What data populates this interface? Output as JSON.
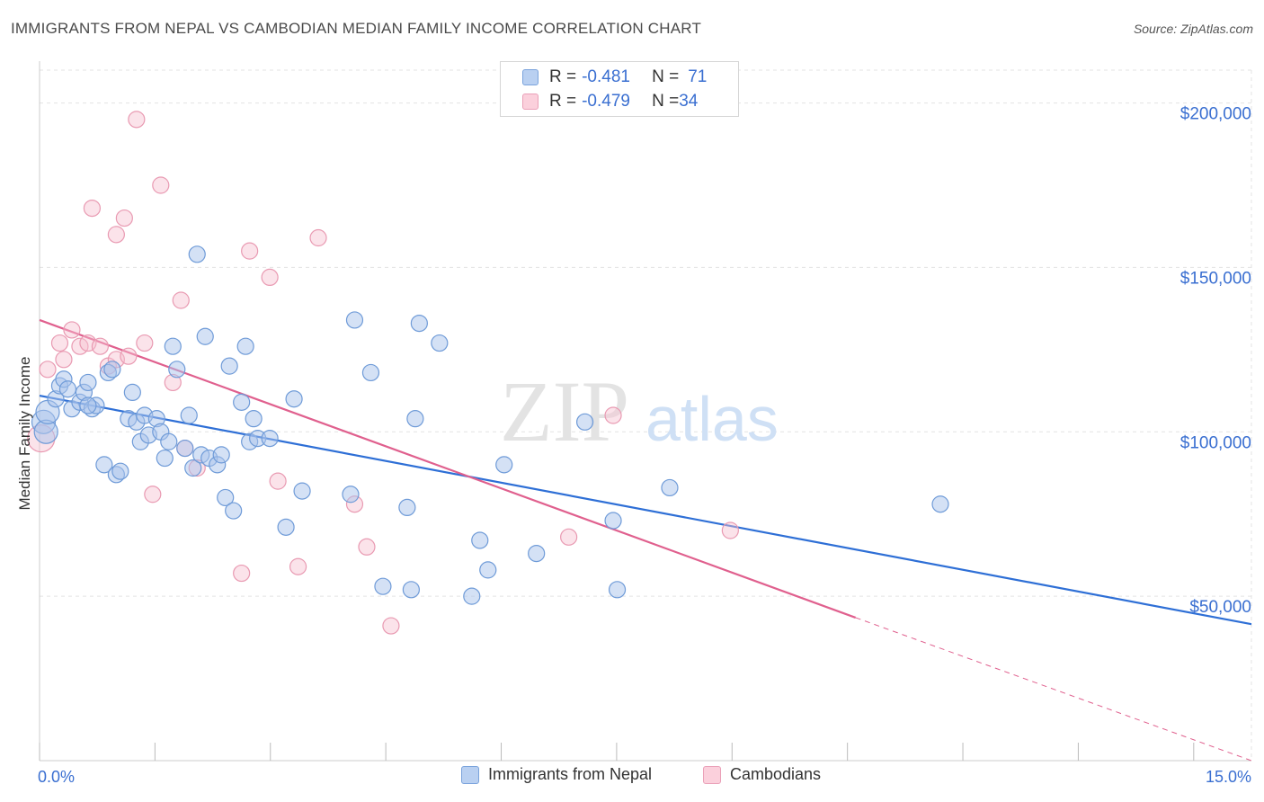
{
  "title": "IMMIGRANTS FROM NEPAL VS CAMBODIAN MEDIAN FAMILY INCOME CORRELATION CHART",
  "source": "Source: ZipAtlas.com",
  "watermark": {
    "zip": "ZIP",
    "atlas": "atlas"
  },
  "legend": {
    "series1": {
      "r_label": "R = ",
      "r_value": "-0.481",
      "n_label": "N = ",
      "n_value": "71"
    },
    "series2": {
      "r_label": "R = ",
      "r_value": "-0.479",
      "n_label": "N = ",
      "n_value": "34"
    }
  },
  "colors": {
    "blue_fill": "#a9c4ec",
    "blue_stroke": "#6f9bd8",
    "blue_line": "#2e6fd6",
    "pink_fill": "#f7c0d0",
    "pink_stroke": "#e99ab2",
    "pink_line": "#e0608e",
    "grid": "#e3e3e3",
    "tick_text": "#3a6fd1"
  },
  "chart_data": {
    "type": "scatter",
    "title": "IMMIGRANTS FROM NEPAL VS CAMBODIAN MEDIAN FAMILY INCOME CORRELATION CHART",
    "xlabel": "",
    "ylabel": "Median Family Income",
    "xlim": [
      0,
      15
    ],
    "ylim": [
      0,
      210000
    ],
    "x_tick_labels": [
      "0.0%",
      "15.0%"
    ],
    "y_ticks": [
      50000,
      100000,
      150000,
      200000
    ],
    "y_tick_labels": [
      "$50,000",
      "$100,000",
      "$150,000",
      "$200,000"
    ],
    "grid": true,
    "legend_position": "bottom",
    "series": [
      {
        "name": "Immigrants from Nepal",
        "color": "#a9c4ec",
        "trend": {
          "x0": 0,
          "y0": 111000,
          "x1": 15,
          "y1": 41500
        },
        "points": [
          [
            0.05,
            103000
          ],
          [
            0.08,
            100000
          ],
          [
            0.1,
            106000
          ],
          [
            0.2,
            110000
          ],
          [
            0.25,
            114000
          ],
          [
            0.3,
            116000
          ],
          [
            0.35,
            113000
          ],
          [
            0.4,
            107000
          ],
          [
            0.5,
            109000
          ],
          [
            0.55,
            112000
          ],
          [
            0.6,
            115000
          ],
          [
            0.65,
            107000
          ],
          [
            0.7,
            108000
          ],
          [
            0.8,
            90000
          ],
          [
            0.85,
            118000
          ],
          [
            0.9,
            119000
          ],
          [
            0.95,
            87000
          ],
          [
            1.0,
            88000
          ],
          [
            1.1,
            104000
          ],
          [
            1.15,
            112000
          ],
          [
            1.2,
            103000
          ],
          [
            1.25,
            97000
          ],
          [
            1.3,
            105000
          ],
          [
            1.35,
            99000
          ],
          [
            1.45,
            104000
          ],
          [
            1.5,
            100000
          ],
          [
            1.55,
            92000
          ],
          [
            1.6,
            97000
          ],
          [
            1.65,
            126000
          ],
          [
            1.7,
            119000
          ],
          [
            1.8,
            95000
          ],
          [
            1.85,
            105000
          ],
          [
            1.9,
            89000
          ],
          [
            1.95,
            154000
          ],
          [
            2.0,
            93000
          ],
          [
            2.05,
            129000
          ],
          [
            2.1,
            92000
          ],
          [
            2.2,
            90000
          ],
          [
            2.25,
            93000
          ],
          [
            2.3,
            80000
          ],
          [
            2.35,
            120000
          ],
          [
            2.4,
            76000
          ],
          [
            2.5,
            109000
          ],
          [
            2.55,
            126000
          ],
          [
            2.6,
            97000
          ],
          [
            2.65,
            104000
          ],
          [
            2.7,
            98000
          ],
          [
            2.85,
            98000
          ],
          [
            3.05,
            71000
          ],
          [
            3.15,
            110000
          ],
          [
            3.25,
            82000
          ],
          [
            3.85,
            81000
          ],
          [
            3.9,
            134000
          ],
          [
            4.1,
            118000
          ],
          [
            4.25,
            53000
          ],
          [
            4.6,
            52000
          ],
          [
            4.55,
            77000
          ],
          [
            4.65,
            104000
          ],
          [
            4.7,
            133000
          ],
          [
            4.95,
            127000
          ],
          [
            5.35,
            50000
          ],
          [
            5.45,
            67000
          ],
          [
            5.55,
            58000
          ],
          [
            5.75,
            90000
          ],
          [
            6.15,
            63000
          ],
          [
            6.75,
            103000
          ],
          [
            7.1,
            73000
          ],
          [
            7.15,
            52000
          ],
          [
            7.8,
            83000
          ],
          [
            11.15,
            78000
          ],
          [
            0.6,
            108000
          ]
        ]
      },
      {
        "name": "Cambodians",
        "color": "#f7c0d0",
        "trend": {
          "x0": 0,
          "y0": 134000,
          "x1": 10.1,
          "y1": 43500,
          "dash_x1": 15,
          "dash_y1": 0
        },
        "points": [
          [
            0.02,
            98000
          ],
          [
            0.1,
            119000
          ],
          [
            0.25,
            127000
          ],
          [
            0.3,
            122000
          ],
          [
            0.4,
            131000
          ],
          [
            0.5,
            126000
          ],
          [
            0.6,
            127000
          ],
          [
            0.65,
            168000
          ],
          [
            0.75,
            126000
          ],
          [
            0.85,
            120000
          ],
          [
            0.95,
            122000
          ],
          [
            0.95,
            160000
          ],
          [
            1.05,
            165000
          ],
          [
            1.1,
            123000
          ],
          [
            1.2,
            195000
          ],
          [
            1.3,
            127000
          ],
          [
            1.4,
            81000
          ],
          [
            1.5,
            175000
          ],
          [
            1.65,
            115000
          ],
          [
            1.75,
            140000
          ],
          [
            1.8,
            95000
          ],
          [
            1.95,
            89000
          ],
          [
            2.5,
            57000
          ],
          [
            2.6,
            155000
          ],
          [
            2.85,
            147000
          ],
          [
            2.95,
            85000
          ],
          [
            3.2,
            59000
          ],
          [
            3.45,
            159000
          ],
          [
            3.9,
            78000
          ],
          [
            4.05,
            65000
          ],
          [
            4.35,
            41000
          ],
          [
            6.55,
            68000
          ],
          [
            7.1,
            105000
          ],
          [
            8.55,
            70000
          ]
        ]
      }
    ]
  }
}
